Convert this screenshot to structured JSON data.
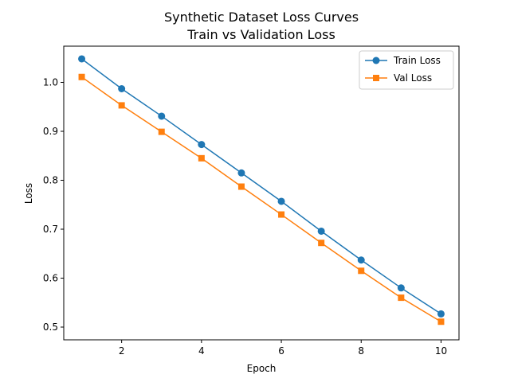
{
  "chart_data": {
    "type": "line",
    "title": "Synthetic Dataset Loss Curves",
    "subtitle": "Train vs Validation Loss",
    "xlabel": "Epoch",
    "ylabel": "Loss",
    "xlim": [
      0.55,
      10.45
    ],
    "ylim": [
      0.474,
      1.074
    ],
    "xticks": [
      2,
      4,
      6,
      8,
      10
    ],
    "yticks": [
      0.5,
      0.6,
      0.7,
      0.8,
      0.9,
      1.0
    ],
    "ytick_labels": [
      "0.5",
      "0.6",
      "0.7",
      "0.8",
      "0.9",
      "1.0"
    ],
    "grid": false,
    "legend_position": "top-right",
    "x": [
      1,
      2,
      3,
      4,
      5,
      6,
      7,
      8,
      9,
      10
    ],
    "series": [
      {
        "name": "Train Loss",
        "color": "#1f77b4",
        "marker": "circle",
        "values": [
          1.048,
          0.987,
          0.931,
          0.873,
          0.815,
          0.757,
          0.696,
          0.637,
          0.58,
          0.527
        ]
      },
      {
        "name": "Val Loss",
        "color": "#ff7f0e",
        "marker": "square",
        "values": [
          1.011,
          0.953,
          0.899,
          0.845,
          0.787,
          0.73,
          0.672,
          0.615,
          0.56,
          0.511
        ]
      }
    ]
  }
}
